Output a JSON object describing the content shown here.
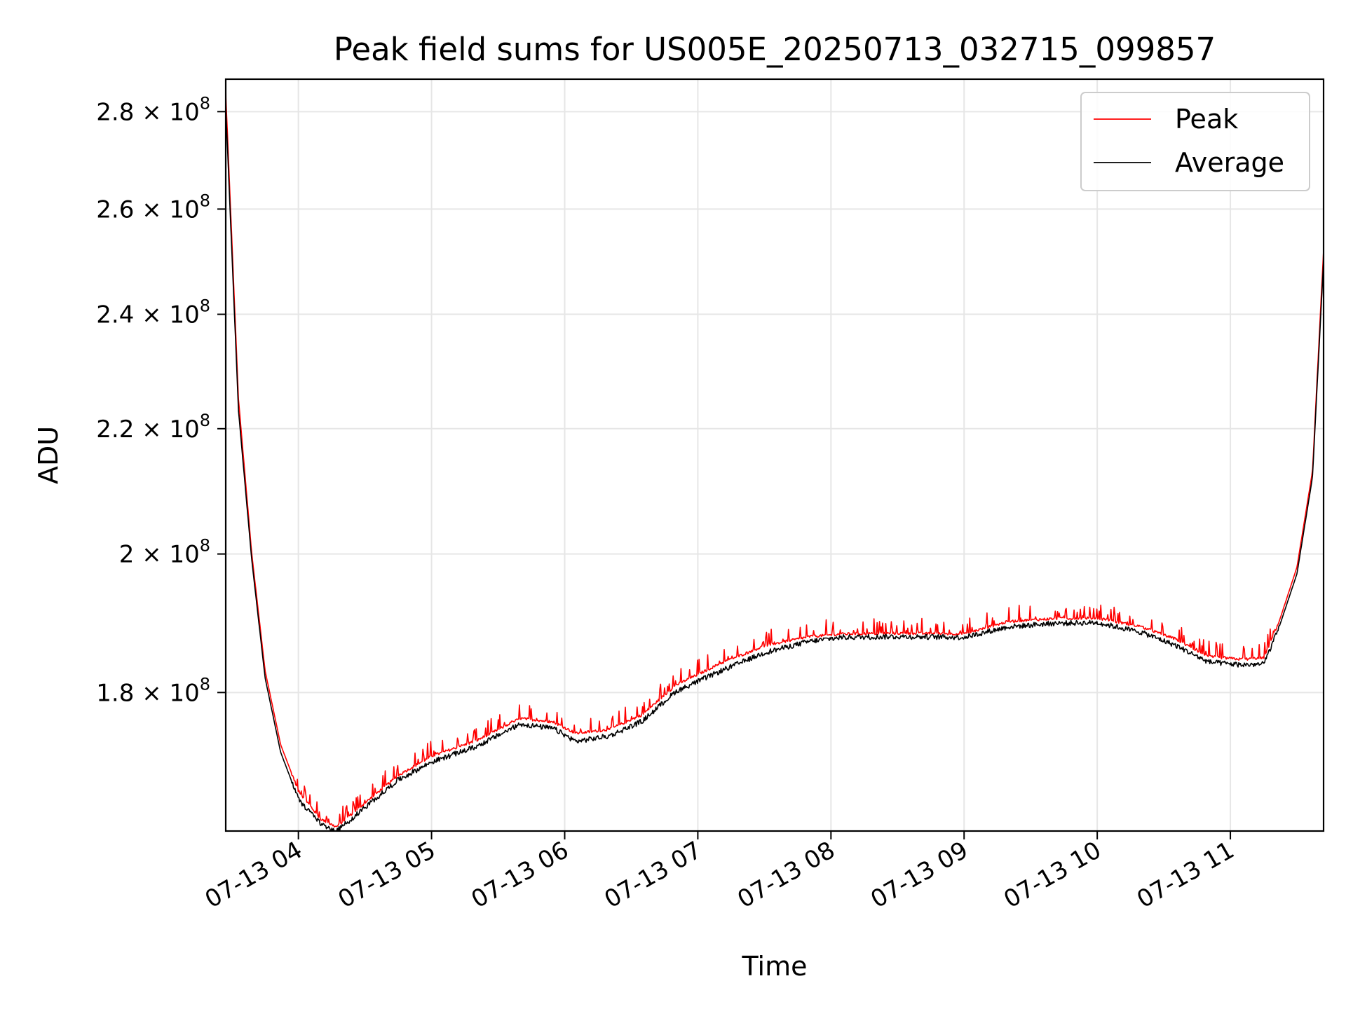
{
  "chart_data": {
    "type": "line",
    "title": "Peak field sums for US005E_20250713_032715_099857",
    "xlabel": "Time",
    "ylabel": "ADU",
    "y_scale": "log",
    "xlim": [
      "2025-07-13T03:27:15",
      "2025-07-13T11:42:00"
    ],
    "ylim": [
      162000000,
      287000000
    ],
    "x_tick_values": [
      "2025-07-13T04:00",
      "2025-07-13T05:00",
      "2025-07-13T06:00",
      "2025-07-13T07:00",
      "2025-07-13T08:00",
      "2025-07-13T09:00",
      "2025-07-13T10:00",
      "2025-07-13T11:00"
    ],
    "x_tick_labels": [
      "07-13 04",
      "07-13 05",
      "07-13 06",
      "07-13 07",
      "07-13 08",
      "07-13 09",
      "07-13 10",
      "07-13 11"
    ],
    "y_ticks": [
      {
        "value": 180000000,
        "mantissa": "1.8",
        "times": "×",
        "base": "10",
        "exp": "8"
      },
      {
        "value": 200000000,
        "mantissa": "2",
        "times": "×",
        "base": "10",
        "exp": "8"
      },
      {
        "value": 220000000,
        "mantissa": "2.2",
        "times": "×",
        "base": "10",
        "exp": "8"
      },
      {
        "value": 240000000,
        "mantissa": "2.4",
        "times": "×",
        "base": "10",
        "exp": "8"
      },
      {
        "value": 260000000,
        "mantissa": "2.6",
        "times": "×",
        "base": "10",
        "exp": "8"
      },
      {
        "value": 280000000,
        "mantissa": "2.8",
        "times": "×",
        "base": "10",
        "exp": "8"
      }
    ],
    "grid": true,
    "legend_position": "top-right",
    "series": [
      {
        "name": "Peak",
        "color": "#ff0000",
        "x": [
          "2025-07-13T03:27",
          "2025-07-13T03:33",
          "2025-07-13T03:39",
          "2025-07-13T03:45",
          "2025-07-13T03:52",
          "2025-07-13T04:00",
          "2025-07-13T04:10",
          "2025-07-13T04:17",
          "2025-07-13T04:30",
          "2025-07-13T04:45",
          "2025-07-13T05:00",
          "2025-07-13T05:20",
          "2025-07-13T05:40",
          "2025-07-13T05:55",
          "2025-07-13T06:05",
          "2025-07-13T06:20",
          "2025-07-13T06:35",
          "2025-07-13T06:50",
          "2025-07-13T07:10",
          "2025-07-13T07:30",
          "2025-07-13T07:50",
          "2025-07-13T08:05",
          "2025-07-13T08:30",
          "2025-07-13T09:00",
          "2025-07-13T09:20",
          "2025-07-13T09:40",
          "2025-07-13T10:00",
          "2025-07-13T10:20",
          "2025-07-13T10:35",
          "2025-07-13T10:50",
          "2025-07-13T11:05",
          "2025-07-13T11:15",
          "2025-07-13T11:22",
          "2025-07-13T11:30",
          "2025-07-13T11:37",
          "2025-07-13T11:42"
        ],
        "values": [
          287000000,
          225000000,
          200000000,
          183000000,
          173000000,
          167000000,
          163500000,
          162500000,
          165500000,
          169000000,
          171500000,
          173500000,
          176500000,
          176000000,
          174500000,
          175000000,
          177000000,
          181000000,
          184000000,
          186500000,
          187800000,
          188200000,
          188300000,
          188200000,
          190000000,
          190400000,
          190500000,
          189200000,
          187500000,
          185000000,
          184600000,
          184800000,
          190000000,
          198000000,
          213000000,
          252000000
        ]
      },
      {
        "name": "Average",
        "color": "#000000",
        "x": [
          "2025-07-13T03:27",
          "2025-07-13T03:33",
          "2025-07-13T03:39",
          "2025-07-13T03:45",
          "2025-07-13T03:52",
          "2025-07-13T04:00",
          "2025-07-13T04:10",
          "2025-07-13T04:17",
          "2025-07-13T04:30",
          "2025-07-13T04:45",
          "2025-07-13T05:00",
          "2025-07-13T05:20",
          "2025-07-13T05:40",
          "2025-07-13T05:55",
          "2025-07-13T06:05",
          "2025-07-13T06:20",
          "2025-07-13T06:35",
          "2025-07-13T06:50",
          "2025-07-13T07:10",
          "2025-07-13T07:30",
          "2025-07-13T07:50",
          "2025-07-13T08:05",
          "2025-07-13T08:30",
          "2025-07-13T09:00",
          "2025-07-13T09:20",
          "2025-07-13T09:40",
          "2025-07-13T10:00",
          "2025-07-13T10:20",
          "2025-07-13T10:35",
          "2025-07-13T10:50",
          "2025-07-13T11:05",
          "2025-07-13T11:15",
          "2025-07-13T11:22",
          "2025-07-13T11:30",
          "2025-07-13T11:37",
          "2025-07-13T11:42"
        ],
        "values": [
          284000000,
          223000000,
          199000000,
          182000000,
          172000000,
          166000000,
          163000000,
          162000000,
          165000000,
          168500000,
          170800000,
          172800000,
          175800000,
          175200000,
          173500000,
          174200000,
          176200000,
          180200000,
          183000000,
          185600000,
          187200000,
          187800000,
          187900000,
          187800000,
          189300000,
          189800000,
          189900000,
          188500000,
          186700000,
          184300000,
          183900000,
          184000000,
          189200000,
          197000000,
          212000000,
          250000000
        ]
      }
    ]
  }
}
